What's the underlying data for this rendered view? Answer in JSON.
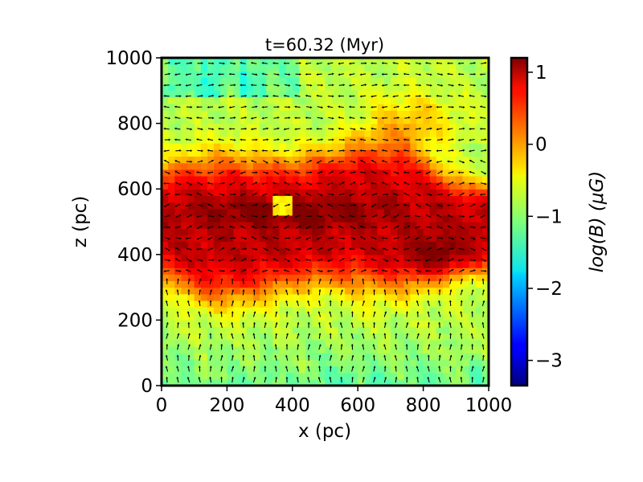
{
  "chart_data": {
    "type": "heatmap",
    "title": "t=60.32 (Myr)",
    "xlabel": "x (pc)",
    "ylabel": "z (pc)",
    "xlim": [
      0,
      1000
    ],
    "ylim": [
      0,
      1000
    ],
    "x_ticks": [
      0,
      200,
      400,
      600,
      800,
      1000
    ],
    "y_ticks": [
      0,
      200,
      400,
      600,
      800,
      1000
    ],
    "x_tick_labels": [
      "0",
      "200",
      "400",
      "600",
      "800",
      "1000"
    ],
    "y_tick_labels": [
      "0",
      "200",
      "400",
      "600",
      "800",
      "1000"
    ],
    "colorbar": {
      "label": "log(B) (μG)",
      "range": [
        -3.35,
        1.2
      ],
      "ticks": [
        1,
        0,
        -1,
        -2,
        -3
      ],
      "tick_labels": [
        "1",
        "0",
        "−1",
        "−2",
        "−3"
      ],
      "colormap": "jet"
    },
    "overlay": "magnetic field direction vectors (quiver)",
    "features": {
      "midplane_band_center_z": 500,
      "high_field_log_B": 0.9,
      "background_log_B": -0.8,
      "cavity_center": [
        370,
        545
      ],
      "cavity_radius_pc": 35
    }
  },
  "colors": {
    "frame": "#000000",
    "background": "#ffffff",
    "arrow": "#000000"
  }
}
